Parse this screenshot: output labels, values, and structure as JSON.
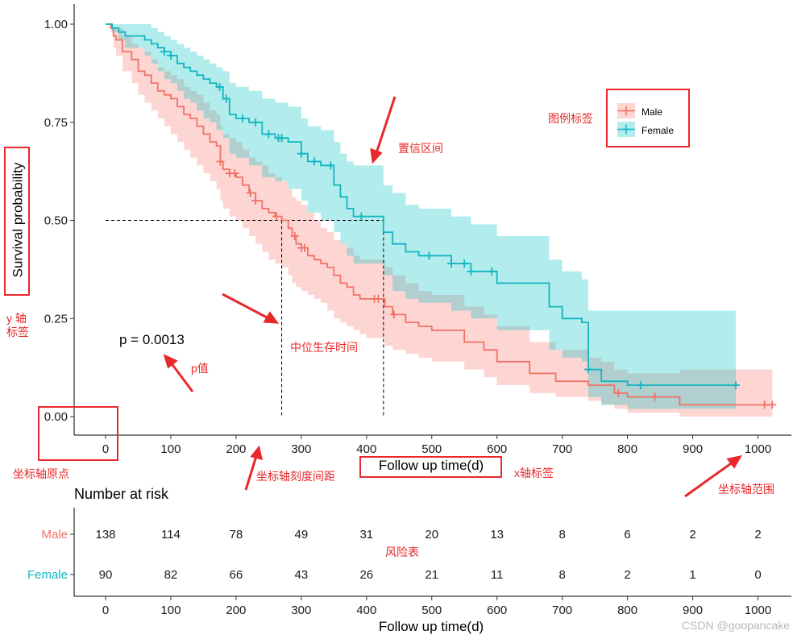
{
  "chart_data": {
    "type": "line",
    "subtype": "kaplan-meier survival curve with confidence bands and risk table",
    "xlabel": "Follow up time(d)",
    "ylabel": "Survival probability",
    "xlim": [
      0,
      1000
    ],
    "ylim": [
      0,
      1
    ],
    "x_ticks": [
      "0",
      "100",
      "200",
      "300",
      "400",
      "500",
      "600",
      "700",
      "800",
      "900",
      "1000"
    ],
    "y_ticks": [
      "0.00",
      "0.25",
      "0.50",
      "0.75",
      "1.00"
    ],
    "p_value_label": "p = 0.0013",
    "median_survival": {
      "Male": 270,
      "Female": 426
    },
    "legend": {
      "position": "top-right",
      "entries": [
        "Male",
        "Female"
      ]
    },
    "series": [
      {
        "name": "Male",
        "color": "#f07267",
        "band_color": "#f8766d",
        "x": [
          0,
          8,
          12,
          16,
          26,
          40,
          50,
          60,
          70,
          80,
          90,
          100,
          110,
          120,
          130,
          140,
          150,
          160,
          170,
          176,
          180,
          190,
          200,
          210,
          220,
          230,
          240,
          250,
          260,
          270,
          280,
          286,
          292,
          300,
          310,
          320,
          330,
          340,
          350,
          360,
          370,
          380,
          390,
          400,
          420,
          428,
          440,
          460,
          480,
          500,
          550,
          580,
          600,
          650,
          690,
          740,
          760,
          780,
          800,
          820,
          880,
          1000,
          1022
        ],
        "y": [
          1.0,
          0.99,
          0.97,
          0.96,
          0.93,
          0.91,
          0.88,
          0.87,
          0.85,
          0.83,
          0.82,
          0.81,
          0.79,
          0.77,
          0.76,
          0.74,
          0.72,
          0.7,
          0.69,
          0.65,
          0.63,
          0.62,
          0.61,
          0.59,
          0.57,
          0.55,
          0.53,
          0.52,
          0.51,
          0.5,
          0.48,
          0.46,
          0.44,
          0.43,
          0.41,
          0.4,
          0.39,
          0.38,
          0.36,
          0.34,
          0.33,
          0.31,
          0.3,
          0.3,
          0.3,
          0.28,
          0.26,
          0.24,
          0.23,
          0.22,
          0.19,
          0.17,
          0.14,
          0.11,
          0.09,
          0.08,
          0.08,
          0.06,
          0.05,
          0.05,
          0.03,
          0.03,
          0.03
        ],
        "lower": [
          1.0,
          0.98,
          0.94,
          0.92,
          0.88,
          0.85,
          0.82,
          0.8,
          0.78,
          0.76,
          0.74,
          0.72,
          0.7,
          0.68,
          0.66,
          0.64,
          0.62,
          0.6,
          0.58,
          0.55,
          0.53,
          0.51,
          0.5,
          0.48,
          0.46,
          0.44,
          0.42,
          0.4,
          0.39,
          0.38,
          0.36,
          0.34,
          0.33,
          0.32,
          0.31,
          0.3,
          0.29,
          0.27,
          0.25,
          0.24,
          0.23,
          0.22,
          0.21,
          0.2,
          0.2,
          0.18,
          0.17,
          0.16,
          0.15,
          0.14,
          0.12,
          0.1,
          0.08,
          0.06,
          0.05,
          0.04,
          0.03,
          0.02,
          0.01,
          0.01,
          0.0,
          0.0,
          0.0
        ],
        "upper": [
          1.0,
          1.0,
          0.99,
          0.99,
          0.97,
          0.95,
          0.94,
          0.93,
          0.91,
          0.89,
          0.88,
          0.87,
          0.86,
          0.84,
          0.83,
          0.82,
          0.8,
          0.78,
          0.77,
          0.74,
          0.72,
          0.71,
          0.7,
          0.68,
          0.66,
          0.65,
          0.64,
          0.62,
          0.61,
          0.6,
          0.58,
          0.56,
          0.55,
          0.54,
          0.52,
          0.5,
          0.48,
          0.47,
          0.45,
          0.44,
          0.43,
          0.41,
          0.4,
          0.4,
          0.4,
          0.38,
          0.36,
          0.34,
          0.32,
          0.31,
          0.28,
          0.26,
          0.23,
          0.19,
          0.17,
          0.15,
          0.14,
          0.12,
          0.11,
          0.11,
          0.12,
          0.12,
          0.12
        ],
        "censored_x": [
          176,
          190,
          198,
          222,
          230,
          262,
          290,
          300,
          305,
          412,
          418,
          442,
          786,
          842,
          1010,
          1022
        ]
      },
      {
        "name": "Female",
        "color": "#12b5c1",
        "band_color": "#00bfc4",
        "x": [
          0,
          10,
          20,
          30,
          60,
          70,
          80,
          90,
          100,
          110,
          120,
          130,
          140,
          150,
          160,
          170,
          180,
          190,
          200,
          220,
          240,
          260,
          280,
          300,
          310,
          330,
          350,
          360,
          370,
          380,
          426,
          440,
          460,
          480,
          500,
          530,
          560,
          600,
          640,
          680,
          700,
          730,
          740,
          760,
          800,
          966
        ],
        "y": [
          1.0,
          0.99,
          0.98,
          0.97,
          0.96,
          0.95,
          0.94,
          0.93,
          0.92,
          0.9,
          0.89,
          0.88,
          0.87,
          0.86,
          0.85,
          0.84,
          0.81,
          0.77,
          0.76,
          0.75,
          0.72,
          0.71,
          0.7,
          0.67,
          0.65,
          0.64,
          0.59,
          0.56,
          0.53,
          0.51,
          0.47,
          0.44,
          0.42,
          0.41,
          0.41,
          0.39,
          0.37,
          0.34,
          0.34,
          0.28,
          0.25,
          0.24,
          0.12,
          0.09,
          0.08,
          0.08
        ],
        "lower": [
          1.0,
          0.98,
          0.96,
          0.94,
          0.92,
          0.9,
          0.88,
          0.86,
          0.85,
          0.83,
          0.81,
          0.8,
          0.78,
          0.76,
          0.75,
          0.73,
          0.71,
          0.67,
          0.66,
          0.64,
          0.61,
          0.6,
          0.58,
          0.55,
          0.52,
          0.5,
          0.47,
          0.44,
          0.41,
          0.39,
          0.36,
          0.32,
          0.3,
          0.29,
          0.29,
          0.27,
          0.25,
          0.22,
          0.22,
          0.17,
          0.15,
          0.14,
          0.05,
          0.03,
          0.02,
          0.02
        ],
        "upper": [
          1.0,
          1.0,
          1.0,
          1.0,
          1.0,
          0.99,
          0.98,
          0.97,
          0.96,
          0.95,
          0.94,
          0.93,
          0.92,
          0.91,
          0.9,
          0.89,
          0.88,
          0.85,
          0.84,
          0.83,
          0.81,
          0.8,
          0.79,
          0.76,
          0.74,
          0.73,
          0.7,
          0.67,
          0.65,
          0.64,
          0.59,
          0.57,
          0.54,
          0.53,
          0.53,
          0.51,
          0.49,
          0.46,
          0.46,
          0.4,
          0.37,
          0.35,
          0.27,
          0.27,
          0.27,
          0.27
        ],
        "censored_x": [
          90,
          100,
          175,
          185,
          210,
          230,
          250,
          265,
          270,
          300,
          320,
          345,
          392,
          496,
          530,
          550,
          560,
          592,
          740,
          820,
          966
        ]
      }
    ],
    "risk_table": {
      "title": "Number at risk",
      "times": [
        0,
        100,
        200,
        300,
        400,
        500,
        600,
        700,
        800,
        900,
        1000
      ],
      "rows": [
        {
          "name": "Male",
          "color": "#f07267",
          "counts": [
            138,
            114,
            78,
            49,
            31,
            20,
            13,
            8,
            6,
            2,
            2
          ]
        },
        {
          "name": "Female",
          "color": "#12b5c1",
          "counts": [
            90,
            82,
            66,
            43,
            26,
            21,
            11,
            8,
            2,
            1,
            0
          ]
        }
      ]
    },
    "annotations": {
      "legend_label": "图例标签",
      "ci": "置信区间",
      "y_axis_label": "y 轴\n标签",
      "median": "中位生存时间",
      "p_value": "p值",
      "origin": "坐标轴原点",
      "tick_spacing": "坐标轴刻度间距",
      "x_axis_label": "x轴标签",
      "axis_range": "坐标轴范围",
      "risk_table": "风险表"
    },
    "annotation_color": "#e8282b"
  },
  "watermark": "CSDN @goopancake"
}
